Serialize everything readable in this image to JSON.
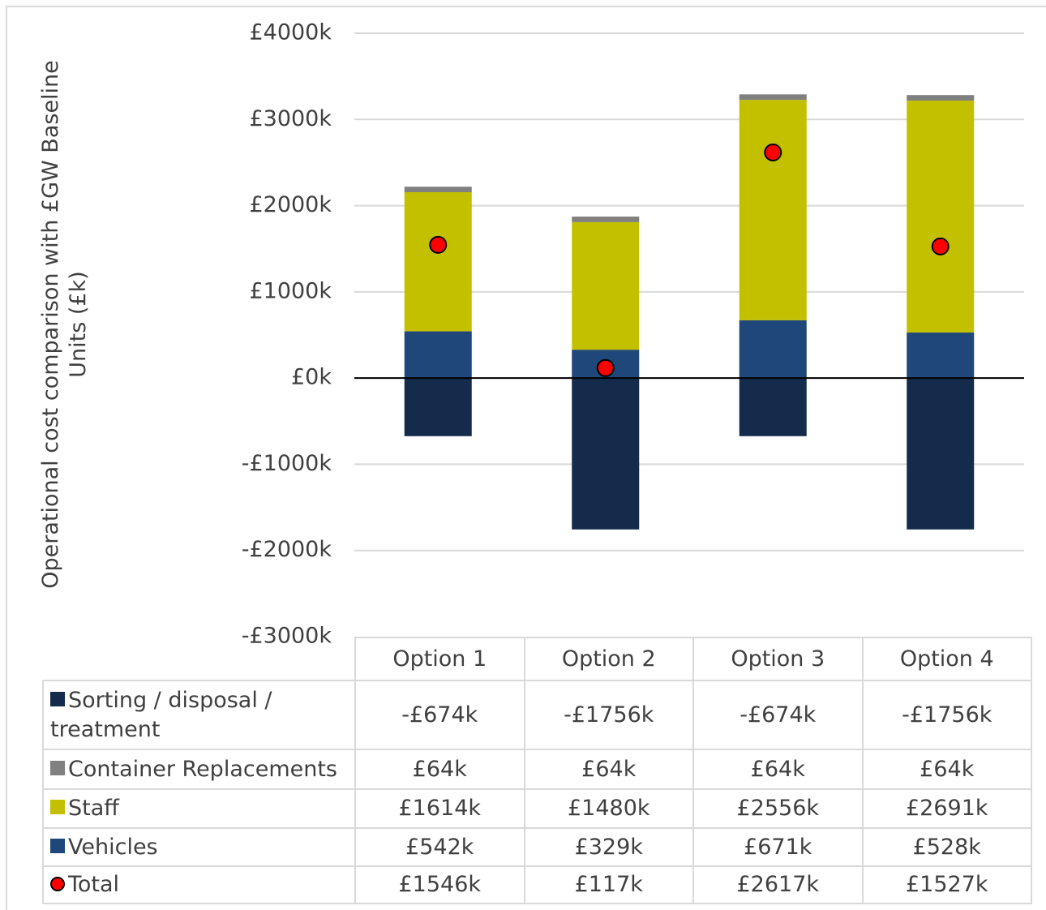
{
  "chart_data": {
    "type": "bar",
    "ylabel": [
      "Operational cost comparison with £GW  Baseline",
      "Units (£k)"
    ],
    "categories": [
      "Option 1",
      "Option 2",
      "Option 3",
      "Option 4"
    ],
    "series": [
      {
        "name": "Sorting / disposal / treatment",
        "color": "#152b4c",
        "values": [
          -674,
          -1756,
          -674,
          -1756
        ],
        "value_labels": [
          "-£674k",
          "-£1756k",
          "-£674k",
          "-£1756k"
        ]
      },
      {
        "name": "Container Replacements",
        "color": "#808080",
        "values": [
          64,
          64,
          64,
          64
        ],
        "value_labels": [
          "£64k",
          "£64k",
          "£64k",
          "£64k"
        ]
      },
      {
        "name": "Staff",
        "color": "#c3c000",
        "values": [
          1614,
          1480,
          2556,
          2691
        ],
        "value_labels": [
          "£1614k",
          "£1480k",
          "£2556k",
          "£2691k"
        ]
      },
      {
        "name": "Vehicles",
        "color": "#1f477a",
        "values": [
          542,
          329,
          671,
          528
        ],
        "value_labels": [
          "£542k",
          "£329k",
          "£671k",
          "£528k"
        ]
      },
      {
        "name": "Total",
        "color": "#ff0000",
        "type": "scatter",
        "values": [
          1546,
          117,
          2617,
          1527
        ],
        "value_labels": [
          "£1546k",
          "£117k",
          "£2617k",
          "£1527k"
        ]
      }
    ],
    "ylim": [
      -3000,
      4000
    ],
    "yticks": [
      {
        "value": -3000,
        "label": "-£3000k"
      },
      {
        "value": -2000,
        "label": "-£2000k"
      },
      {
        "value": -1000,
        "label": "-£1000k"
      },
      {
        "value": 0,
        "label": "£0k"
      },
      {
        "value": 1000,
        "label": "£1000k"
      },
      {
        "value": 2000,
        "label": "£2000k"
      },
      {
        "value": 3000,
        "label": "£3000k"
      },
      {
        "value": 4000,
        "label": "£4000k"
      }
    ],
    "grid": true
  }
}
